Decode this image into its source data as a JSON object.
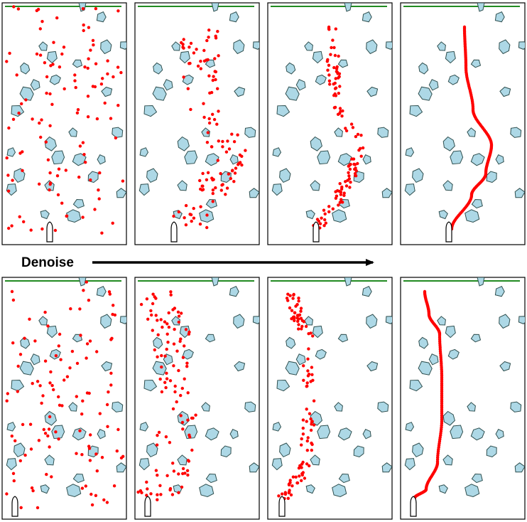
{
  "caption": {
    "arrow_label": "Denoise"
  },
  "colors": {
    "background": "#ffffff",
    "panel_border": "#000000",
    "obstacle_fill": "#add8e6",
    "obstacle_stroke": "#2f4f4f",
    "point_color": "#ff0000",
    "goal_line_color": "#228b22",
    "arrow_color": "#000000",
    "boat_fill": "#ffffff",
    "boat_stroke": "#000000"
  },
  "rows": [
    {
      "row_name": "top",
      "stages": [
        "noisy",
        "partially-denoised",
        "nearly-denoised",
        "final-path"
      ]
    },
    {
      "row_name": "bottom",
      "stages": [
        "noisy",
        "partially-denoised",
        "nearly-denoised",
        "final-path"
      ]
    }
  ],
  "icons": {
    "agent": "boat-icon",
    "goal": "goal-line",
    "obstacle": "obstacle-polygon",
    "sample": "path-point"
  }
}
